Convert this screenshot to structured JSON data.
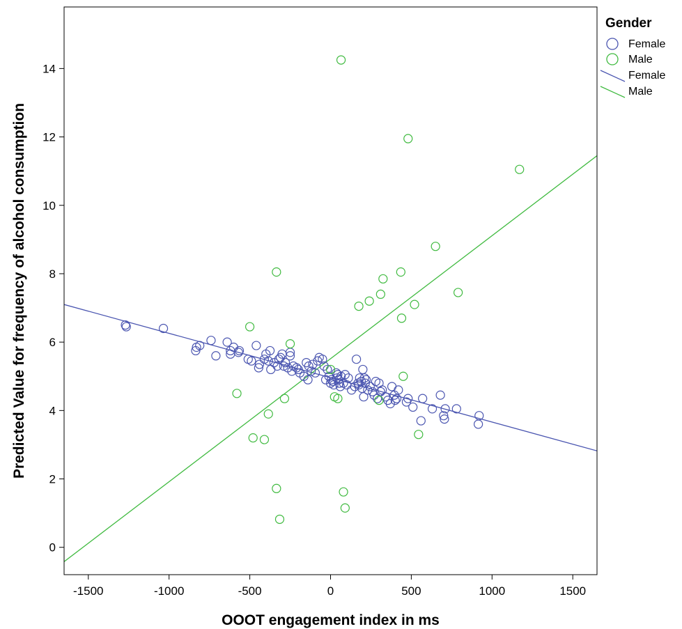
{
  "chart_data": {
    "type": "scatter",
    "xlabel": "OOOT engagement index in ms",
    "ylabel": "Predicted Value for frequency of alcohol consumption",
    "xlim": [
      -1650,
      1650
    ],
    "ylim": [
      -0.8,
      15.8
    ],
    "xticks": [
      -1500,
      -1000,
      -500,
      0,
      500,
      1000,
      1500
    ],
    "yticks": [
      0,
      2,
      4,
      6,
      8,
      10,
      12,
      14
    ],
    "grid": false,
    "legend": {
      "title": "Gender",
      "placement": "right",
      "entries": [
        {
          "label": "Female",
          "kind": "marker",
          "color": "#4a55b0"
        },
        {
          "label": "Male",
          "kind": "marker",
          "color": "#3fba3f"
        },
        {
          "label": "Female",
          "kind": "line",
          "color": "#4a55b0"
        },
        {
          "label": "Male",
          "kind": "line",
          "color": "#3fba3f"
        }
      ]
    },
    "series": [
      {
        "name": "Female",
        "kind": "scatter",
        "color": "#4a55b0",
        "points": [
          [
            -1270,
            6.5
          ],
          [
            -1265,
            6.45
          ],
          [
            -1035,
            6.4
          ],
          [
            -830,
            5.85
          ],
          [
            -835,
            5.75
          ],
          [
            -810,
            5.9
          ],
          [
            -740,
            6.05
          ],
          [
            -710,
            5.6
          ],
          [
            -640,
            6.0
          ],
          [
            -620,
            5.75
          ],
          [
            -620,
            5.65
          ],
          [
            -600,
            5.85
          ],
          [
            -570,
            5.7
          ],
          [
            -565,
            5.75
          ],
          [
            -510,
            5.5
          ],
          [
            -490,
            5.45
          ],
          [
            -460,
            5.9
          ],
          [
            -445,
            5.25
          ],
          [
            -440,
            5.35
          ],
          [
            -410,
            5.5
          ],
          [
            -400,
            5.65
          ],
          [
            -385,
            5.45
          ],
          [
            -375,
            5.75
          ],
          [
            -370,
            5.2
          ],
          [
            -350,
            5.4
          ],
          [
            -330,
            5.3
          ],
          [
            -320,
            5.5
          ],
          [
            -310,
            5.55
          ],
          [
            -300,
            5.65
          ],
          [
            -290,
            5.3
          ],
          [
            -280,
            5.4
          ],
          [
            -265,
            5.25
          ],
          [
            -250,
            5.7
          ],
          [
            -250,
            5.6
          ],
          [
            -240,
            5.15
          ],
          [
            -230,
            5.3
          ],
          [
            -210,
            5.25
          ],
          [
            -200,
            5.2
          ],
          [
            -190,
            5.1
          ],
          [
            -165,
            5.0
          ],
          [
            -150,
            5.4
          ],
          [
            -140,
            4.9
          ],
          [
            -135,
            5.3
          ],
          [
            -120,
            5.15
          ],
          [
            -110,
            5.35
          ],
          [
            -95,
            5.1
          ],
          [
            -80,
            5.45
          ],
          [
            -70,
            5.55
          ],
          [
            -50,
            5.5
          ],
          [
            -40,
            5.3
          ],
          [
            -30,
            4.9
          ],
          [
            -20,
            5.2
          ],
          [
            -10,
            5.0
          ],
          [
            0,
            4.8
          ],
          [
            5,
            4.9
          ],
          [
            15,
            4.85
          ],
          [
            20,
            4.75
          ],
          [
            35,
            5.1
          ],
          [
            40,
            4.95
          ],
          [
            45,
            5.05
          ],
          [
            50,
            4.9
          ],
          [
            55,
            4.8
          ],
          [
            60,
            4.7
          ],
          [
            65,
            5.0
          ],
          [
            80,
            4.8
          ],
          [
            90,
            5.05
          ],
          [
            100,
            4.75
          ],
          [
            110,
            4.95
          ],
          [
            130,
            4.6
          ],
          [
            150,
            4.7
          ],
          [
            160,
            5.5
          ],
          [
            170,
            4.8
          ],
          [
            175,
            4.75
          ],
          [
            180,
            4.95
          ],
          [
            190,
            4.85
          ],
          [
            195,
            4.65
          ],
          [
            200,
            5.2
          ],
          [
            205,
            4.4
          ],
          [
            210,
            4.95
          ],
          [
            215,
            4.8
          ],
          [
            220,
            4.9
          ],
          [
            230,
            4.6
          ],
          [
            245,
            4.7
          ],
          [
            260,
            4.55
          ],
          [
            270,
            4.45
          ],
          [
            280,
            4.85
          ],
          [
            290,
            4.35
          ],
          [
            300,
            4.8
          ],
          [
            310,
            4.55
          ],
          [
            320,
            4.6
          ],
          [
            340,
            4.4
          ],
          [
            355,
            4.3
          ],
          [
            370,
            4.2
          ],
          [
            380,
            4.7
          ],
          [
            395,
            4.45
          ],
          [
            400,
            4.3
          ],
          [
            410,
            4.35
          ],
          [
            420,
            4.6
          ],
          [
            470,
            4.25
          ],
          [
            480,
            4.35
          ],
          [
            510,
            4.1
          ],
          [
            560,
            3.7
          ],
          [
            570,
            4.35
          ],
          [
            630,
            4.05
          ],
          [
            680,
            4.45
          ],
          [
            700,
            3.85
          ],
          [
            705,
            3.75
          ],
          [
            710,
            4.05
          ],
          [
            780,
            4.05
          ],
          [
            915,
            3.6
          ],
          [
            920,
            3.85
          ]
        ]
      },
      {
        "name": "Male",
        "kind": "scatter",
        "color": "#3fba3f",
        "points": [
          [
            -580,
            4.5
          ],
          [
            -500,
            6.45
          ],
          [
            -480,
            3.2
          ],
          [
            -410,
            3.15
          ],
          [
            -385,
            3.9
          ],
          [
            -335,
            8.05
          ],
          [
            -335,
            1.72
          ],
          [
            -315,
            0.82
          ],
          [
            -285,
            4.35
          ],
          [
            -250,
            5.95
          ],
          [
            0,
            5.2
          ],
          [
            25,
            4.4
          ],
          [
            45,
            4.35
          ],
          [
            65,
            14.25
          ],
          [
            80,
            1.62
          ],
          [
            90,
            1.15
          ],
          [
            175,
            7.05
          ],
          [
            240,
            7.2
          ],
          [
            300,
            4.3
          ],
          [
            310,
            7.4
          ],
          [
            325,
            7.85
          ],
          [
            435,
            8.05
          ],
          [
            440,
            6.7
          ],
          [
            450,
            5.0
          ],
          [
            480,
            11.95
          ],
          [
            520,
            7.1
          ],
          [
            545,
            3.3
          ],
          [
            650,
            8.8
          ],
          [
            790,
            7.45
          ],
          [
            1170,
            11.05
          ]
        ]
      },
      {
        "name": "Female",
        "kind": "line",
        "color": "#4a55b0",
        "points": [
          [
            -1650,
            7.1
          ],
          [
            1650,
            2.82
          ]
        ]
      },
      {
        "name": "Male",
        "kind": "line",
        "color": "#3fba3f",
        "points": [
          [
            -1650,
            -0.42
          ],
          [
            1650,
            11.45
          ]
        ]
      }
    ]
  }
}
